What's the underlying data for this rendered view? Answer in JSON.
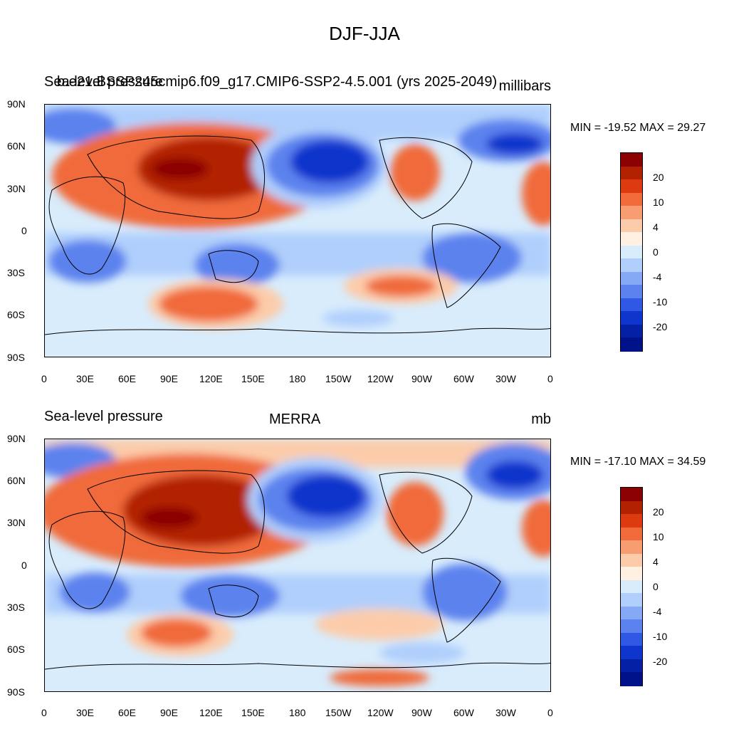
{
  "title": "DJF-JJA",
  "panels": [
    {
      "left_title": "Sea-level pressure",
      "left_title_overlay": "b.e21.BSSP245cmip6.f09_g17.CMIP6-SSP2-4.5.001 (yrs 2025-2049)",
      "units": "millibars",
      "minmax": "MIN = -19.52 MAX =  29.27"
    },
    {
      "left_title": "Sea-level pressure",
      "center_title": "MERRA",
      "units": "mb",
      "minmax": "MIN = -17.10 MAX =  34.59"
    }
  ],
  "axes": {
    "lat_labels": [
      "90N",
      "60N",
      "30N",
      "0",
      "30S",
      "60S",
      "90S"
    ],
    "lon_labels": [
      "0",
      "30E",
      "60E",
      "90E",
      "120E",
      "150E",
      "180",
      "150W",
      "120W",
      "90W",
      "60W",
      "30W",
      "0"
    ]
  },
  "colorbar": {
    "labels": [
      "20",
      "10",
      "4",
      "0",
      "-4",
      "-10",
      "-20"
    ],
    "colors": [
      "#8b0000",
      "#b22200",
      "#de3a10",
      "#f06a3a",
      "#f89c72",
      "#fcccaa",
      "#fff0e2",
      "#d8ecfc",
      "#b0cffc",
      "#85a9f5",
      "#5b82ee",
      "#2f58e4",
      "#0f36cc",
      "#0421a6",
      "#00128a"
    ]
  },
  "palette": {
    "neg_strong": "#0f36cc",
    "neg_mid": "#5b82ee",
    "neg_light": "#b0cffc",
    "neutral": "#d8ecfc",
    "pos_light": "#fcccaa",
    "pos_mid": "#f06a3a",
    "pos_strong": "#b22200",
    "pos_max": "#8b0000"
  }
}
